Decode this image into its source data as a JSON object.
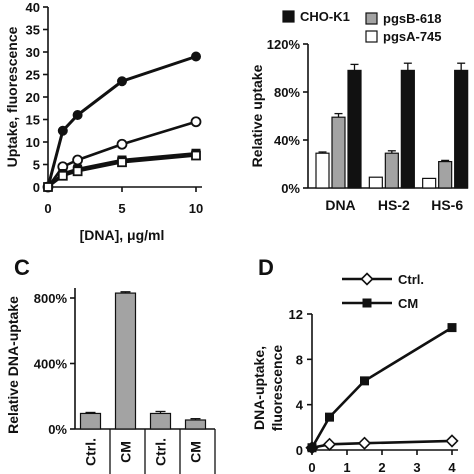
{
  "chart_data": [
    {
      "panel": "",
      "type": "line",
      "xlabel": "[DNA], μg/ml",
      "ylabel": "Uptake, fluorescence",
      "xlim": [
        0,
        10
      ],
      "ylim": [
        0,
        40
      ],
      "xticks": [
        "0",
        "5",
        "10"
      ],
      "yticks": [
        "0",
        "5",
        "10",
        "15",
        "20",
        "25",
        "30",
        "35",
        "40"
      ],
      "series": [
        {
          "marker": "filled-circle",
          "x": [
            0,
            1,
            2,
            5,
            10
          ],
          "y": [
            0,
            12.5,
            16,
            23.5,
            29
          ]
        },
        {
          "marker": "open-circle",
          "x": [
            0,
            1,
            2,
            5,
            10
          ],
          "y": [
            0,
            4.5,
            6,
            9.5,
            14.5
          ]
        },
        {
          "marker": "filled-square",
          "x": [
            0,
            1,
            2,
            5,
            10
          ],
          "y": [
            0,
            3,
            4,
            6,
            7.5
          ]
        },
        {
          "marker": "open-square",
          "x": [
            0,
            1,
            2,
            5,
            10
          ],
          "y": [
            0,
            2.5,
            3.5,
            5.5,
            7
          ]
        }
      ]
    },
    {
      "panel": "",
      "type": "bar",
      "ylabel": "Relative uptake",
      "ylim": [
        0,
        120
      ],
      "yticks": [
        "0%",
        "40%",
        "80%",
        "120%"
      ],
      "categories": [
        "DNA",
        "HS-2",
        "HS-6"
      ],
      "legend_position": "top",
      "series": [
        {
          "name": "CHO-K1",
          "color": "#111111",
          "values": [
            98,
            98,
            98
          ],
          "errors": [
            5,
            6,
            6
          ]
        },
        {
          "name": "pgsB-618",
          "color": "#a3a3a3",
          "values": [
            59,
            29,
            22
          ],
          "errors": [
            3,
            2,
            1
          ]
        },
        {
          "name": "pgsA-745",
          "color": "#ffffff",
          "values": [
            29,
            9,
            8
          ],
          "errors": [
            1,
            0,
            0
          ]
        }
      ]
    },
    {
      "panel": "C",
      "type": "bar",
      "ylabel": "Relative DNA-uptake",
      "ylim": [
        0,
        800
      ],
      "yticks": [
        "0%",
        "400%",
        "800%"
      ],
      "categories": [
        "Ctrl.",
        "CM",
        "Ctrl.",
        "CM"
      ],
      "color": "#a3a3a3",
      "values": [
        95,
        830,
        95,
        55
      ],
      "errors": [
        6,
        8,
        12,
        8
      ]
    },
    {
      "panel": "D",
      "type": "line",
      "ylabel": "DNA-uptake, fluorescence",
      "xlim": [
        0,
        4
      ],
      "ylim": [
        0,
        12
      ],
      "xticks": [
        "0",
        "1",
        "2",
        "3",
        "4"
      ],
      "yticks": [
        "0",
        "4",
        "8",
        "12"
      ],
      "series": [
        {
          "name": "Ctrl.",
          "marker": "open-diamond",
          "x": [
            0,
            0.5,
            1.5,
            4
          ],
          "y": [
            0.2,
            0.5,
            0.6,
            0.8
          ]
        },
        {
          "name": "CM",
          "marker": "filled-square",
          "x": [
            0,
            0.5,
            1.5,
            4
          ],
          "y": [
            0.2,
            2.9,
            6.1,
            10.8
          ],
          "errors": [
            0,
            0.3,
            0.3,
            0.3
          ]
        }
      ]
    }
  ]
}
